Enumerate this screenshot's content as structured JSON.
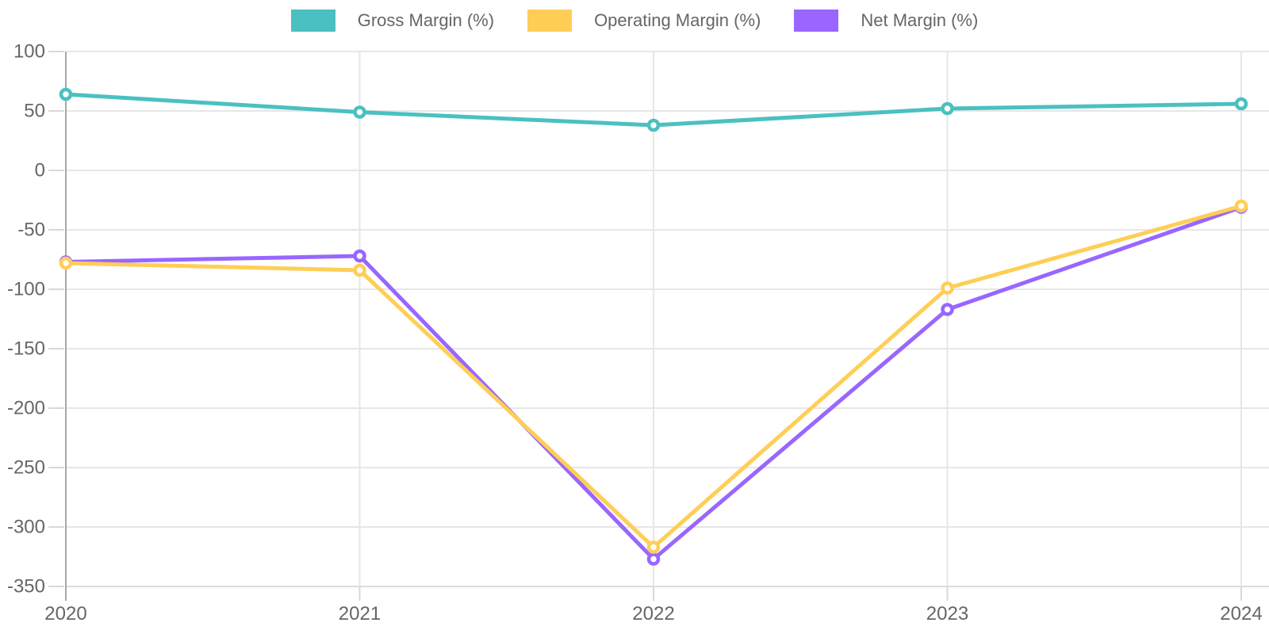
{
  "chart_data": {
    "type": "line",
    "categories": [
      "2020",
      "2021",
      "2022",
      "2023",
      "2024"
    ],
    "series": [
      {
        "name": "Gross Margin (%)",
        "color": "#4BC0C0",
        "values": [
          64,
          49,
          38,
          52,
          56
        ]
      },
      {
        "name": "Operating Margin (%)",
        "color": "#FFCE56",
        "values": [
          -78,
          -84,
          -317,
          -99,
          -30
        ]
      },
      {
        "name": "Net Margin (%)",
        "color": "#9966FF",
        "values": [
          -77,
          -72,
          -327,
          -117,
          -31
        ]
      }
    ],
    "title": "",
    "xlabel": "",
    "ylabel": "",
    "ylim": [
      -350,
      100
    ],
    "ytick_step": 50,
    "ytick_labels": [
      "100",
      "50",
      "0",
      "-50",
      "-100",
      "-150",
      "-200",
      "-250",
      "-300",
      "-350"
    ],
    "grid": true,
    "legend_position": "top",
    "colors": {
      "grid_line": "#E6E6E6",
      "bottom_line": "#DCDCDC",
      "axis_line": "#A8A8A8",
      "tick_mark": "#D8D8D8",
      "tick_text": "#666666",
      "marker_fill": "#FFFFFF"
    }
  }
}
